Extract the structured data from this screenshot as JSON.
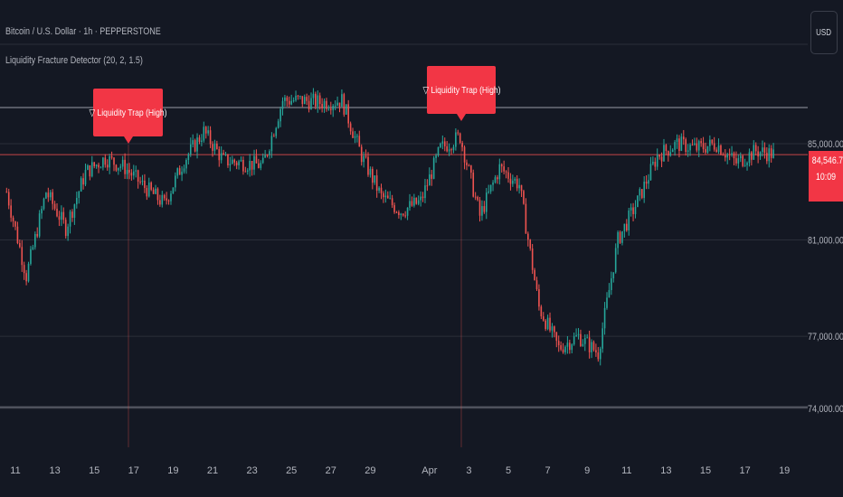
{
  "header": {
    "symbol_title": "Bitcoin / U.S. Dollar · 1h · PEPPERSTONE",
    "indicator_title": "Liquidity Fracture Detector (20, 2, 1.5)"
  },
  "currency_button": {
    "label": "USD"
  },
  "last_price": {
    "value": "84,546.73",
    "countdown": "10:09"
  },
  "annotations": [
    {
      "icon": "▽",
      "text": "Liquidity Trap (High)",
      "date": "Mar 16"
    },
    {
      "icon": "▽",
      "text": "Liquidity Trap (High)",
      "date": "Apr 2"
    }
  ],
  "colors": {
    "up": "#26a69a",
    "down": "#ef5350",
    "label": "#f23645",
    "background": "#141823",
    "grid": "#2a2e39"
  },
  "chart_data": {
    "type": "candlestick",
    "y_axis": {
      "range": [
        73800,
        87000
      ],
      "ticks": [
        74000,
        77000,
        81000,
        85000
      ],
      "tick_labels": [
        "74,000.00",
        "77,000.00",
        "81,000.00",
        "85,000.00"
      ]
    },
    "x_axis": {
      "tick_labels": [
        "11",
        "13",
        "15",
        "17",
        "19",
        "21",
        "23",
        "25",
        "27",
        "29",
        "Apr",
        "3",
        "5",
        "7",
        "9",
        "11",
        "13",
        "15",
        "17",
        "19"
      ]
    },
    "reference_lines": [
      {
        "name": "liquidity-high",
        "value": 86500
      },
      {
        "name": "liquidity-low",
        "value": 74050
      },
      {
        "name": "last-price",
        "value": 84546.73
      }
    ],
    "close_path": [
      [
        "Mar 10",
        83000
      ],
      [
        "Mar 11",
        79500
      ],
      [
        "Mar 12",
        83000
      ],
      [
        "Mar 13",
        81500
      ],
      [
        "Mar 14",
        83800
      ],
      [
        "Mar 15",
        84400
      ],
      [
        "Mar 16",
        84000
      ],
      [
        "Mar 17",
        83200
      ],
      [
        "Mar 18",
        82500
      ],
      [
        "Mar 19",
        84300
      ],
      [
        "Mar 20",
        85500
      ],
      [
        "Mar 21",
        84300
      ],
      [
        "Mar 22",
        84200
      ],
      [
        "Mar 23",
        84100
      ],
      [
        "Mar 24",
        86800
      ],
      [
        "Mar 25",
        86800
      ],
      [
        "Mar 26",
        86700
      ],
      [
        "Mar 27",
        86800
      ],
      [
        "Mar 28",
        84500
      ],
      [
        "Mar 29",
        82800
      ],
      [
        "Mar 30",
        82200
      ],
      [
        "Mar 31",
        82600
      ],
      [
        "Apr 1",
        84800
      ],
      [
        "Apr 2",
        85300
      ],
      [
        "Apr 3",
        82000
      ],
      [
        "Apr 4",
        84000
      ],
      [
        "Apr 5",
        83300
      ],
      [
        "Apr 6",
        78200
      ],
      [
        "Apr 7",
        76500
      ],
      [
        "Apr 8",
        77000
      ],
      [
        "Apr 9",
        76300
      ],
      [
        "Apr 10",
        81000
      ],
      [
        "Apr 11",
        82600
      ],
      [
        "Apr 12",
        84500
      ],
      [
        "Apr 13",
        85000
      ],
      [
        "Apr 14",
        84800
      ],
      [
        "Apr 15",
        85000
      ],
      [
        "Apr 16",
        84200
      ],
      [
        "Apr 17",
        84700
      ],
      [
        "Apr 18",
        84546.73
      ]
    ]
  }
}
